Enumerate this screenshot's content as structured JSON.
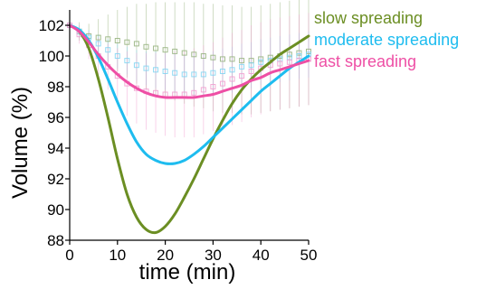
{
  "chart_data": {
    "type": "line",
    "title": "",
    "xlabel": "time (min)",
    "ylabel": "Volume (%)",
    "xlim": [
      0,
      50
    ],
    "ylim": [
      88,
      103
    ],
    "x_ticks": [
      0,
      10,
      20,
      30,
      40,
      50
    ],
    "y_ticks": [
      88,
      90,
      92,
      94,
      96,
      98,
      100,
      102
    ],
    "grid": false,
    "legend_position": "top-right",
    "series": [
      {
        "name": "slow spreading",
        "color": "#6b8e23",
        "marker_color": "#93b07a",
        "model_x": [
          0,
          2,
          4,
          6,
          8,
          10,
          12,
          14,
          16,
          18,
          20,
          22,
          24,
          26,
          28,
          30,
          32,
          34,
          36,
          38,
          40,
          42,
          44,
          46,
          48,
          50
        ],
        "model_y": [
          102,
          101.6,
          100.5,
          98.5,
          96.0,
          93.3,
          91.0,
          89.5,
          88.7,
          88.5,
          88.9,
          89.7,
          90.8,
          92.0,
          93.3,
          94.6,
          95.8,
          96.9,
          97.8,
          98.5,
          99.1,
          99.6,
          100.1,
          100.5,
          100.9,
          101.3
        ],
        "measured_x": [
          0,
          2,
          4,
          6,
          8,
          10,
          12,
          14,
          16,
          18,
          20,
          22,
          24,
          26,
          28,
          30,
          32,
          34,
          36,
          38,
          40,
          42,
          44,
          46,
          48,
          50
        ],
        "measured_y": [
          102,
          101.6,
          101.3,
          101.2,
          101.1,
          101.0,
          100.9,
          100.8,
          100.6,
          100.5,
          100.4,
          100.3,
          100.2,
          100.1,
          100.0,
          99.9,
          99.8,
          99.8,
          99.7,
          99.7,
          99.8,
          99.9,
          100.0,
          100.1,
          100.2,
          100.3
        ],
        "error": [
          0.3,
          0.6,
          0.8,
          1.2,
          1.6,
          2.0,
          2.3,
          2.6,
          2.8,
          3.0,
          3.1,
          3.2,
          3.3,
          3.4,
          3.4,
          3.5,
          3.5,
          3.5,
          3.5,
          3.5,
          3.5,
          3.5,
          3.5,
          3.5,
          3.5,
          3.5
        ]
      },
      {
        "name": "moderate spreading",
        "color": "#1ebcef",
        "marker_color": "#7fd3f2",
        "model_x": [
          0,
          2,
          4,
          6,
          8,
          10,
          12,
          14,
          16,
          18,
          20,
          22,
          24,
          26,
          28,
          30,
          32,
          34,
          36,
          38,
          40,
          42,
          44,
          46,
          48,
          50
        ],
        "model_y": [
          102,
          101.7,
          101.0,
          99.9,
          98.5,
          97.0,
          95.6,
          94.4,
          93.6,
          93.2,
          93.0,
          93.0,
          93.2,
          93.6,
          94.1,
          94.7,
          95.3,
          95.9,
          96.5,
          97.1,
          97.7,
          98.2,
          98.7,
          99.2,
          99.6,
          100.0
        ],
        "measured_x": [
          0,
          2,
          4,
          6,
          8,
          10,
          12,
          14,
          16,
          18,
          20,
          22,
          24,
          26,
          28,
          30,
          32,
          34,
          36,
          38,
          40,
          42,
          44,
          46,
          48,
          50
        ],
        "measured_y": [
          102,
          101.6,
          101.2,
          100.8,
          100.4,
          100.0,
          99.7,
          99.4,
          99.2,
          99.1,
          99.0,
          98.9,
          98.8,
          98.8,
          98.8,
          98.9,
          99.0,
          99.1,
          99.3,
          99.4,
          99.6,
          99.7,
          99.8,
          99.9,
          100.0,
          100.1
        ],
        "error": [
          0.3,
          0.4,
          0.5,
          0.6,
          0.7,
          0.8,
          0.9,
          1.0,
          1.1,
          1.2,
          1.2,
          1.3,
          1.3,
          1.4,
          1.4,
          1.4,
          1.5,
          1.5,
          1.5,
          1.5,
          1.5,
          1.5,
          1.5,
          1.5,
          1.5,
          1.5
        ]
      },
      {
        "name": "fast spreading",
        "color": "#ee4fa5",
        "marker_color": "#f19bcf",
        "model_x": [
          0,
          2,
          4,
          6,
          8,
          10,
          12,
          14,
          16,
          18,
          20,
          22,
          24,
          26,
          28,
          30,
          32,
          34,
          36,
          38,
          40,
          42,
          44,
          46,
          48,
          50
        ],
        "model_y": [
          102,
          101.6,
          100.9,
          100.1,
          99.4,
          98.8,
          98.3,
          97.9,
          97.6,
          97.4,
          97.3,
          97.3,
          97.3,
          97.3,
          97.4,
          97.5,
          97.7,
          97.9,
          98.1,
          98.4,
          98.6,
          98.9,
          99.1,
          99.3,
          99.5,
          99.7
        ],
        "measured_x": [
          0,
          2,
          4,
          6,
          8,
          10,
          12,
          14,
          16,
          18,
          20,
          22,
          24,
          26,
          28,
          30,
          32,
          34,
          36,
          38,
          40,
          42,
          44,
          46,
          48,
          50
        ],
        "measured_y": [
          102,
          101.4,
          100.7,
          100.0,
          99.3,
          98.7,
          98.2,
          97.9,
          97.7,
          97.6,
          97.5,
          97.5,
          97.5,
          97.6,
          97.8,
          98.0,
          98.2,
          98.5,
          98.7,
          99.0,
          99.2,
          99.4,
          99.5,
          99.6,
          99.7,
          99.8
        ],
        "error": [
          0.3,
          0.6,
          0.9,
          1.2,
          1.5,
          1.8,
          2.1,
          2.3,
          2.5,
          2.6,
          2.7,
          2.8,
          2.8,
          2.9,
          2.9,
          2.9,
          3.0,
          3.0,
          3.0,
          3.0,
          3.0,
          3.0,
          3.0,
          3.0,
          3.0,
          3.0
        ]
      }
    ]
  }
}
